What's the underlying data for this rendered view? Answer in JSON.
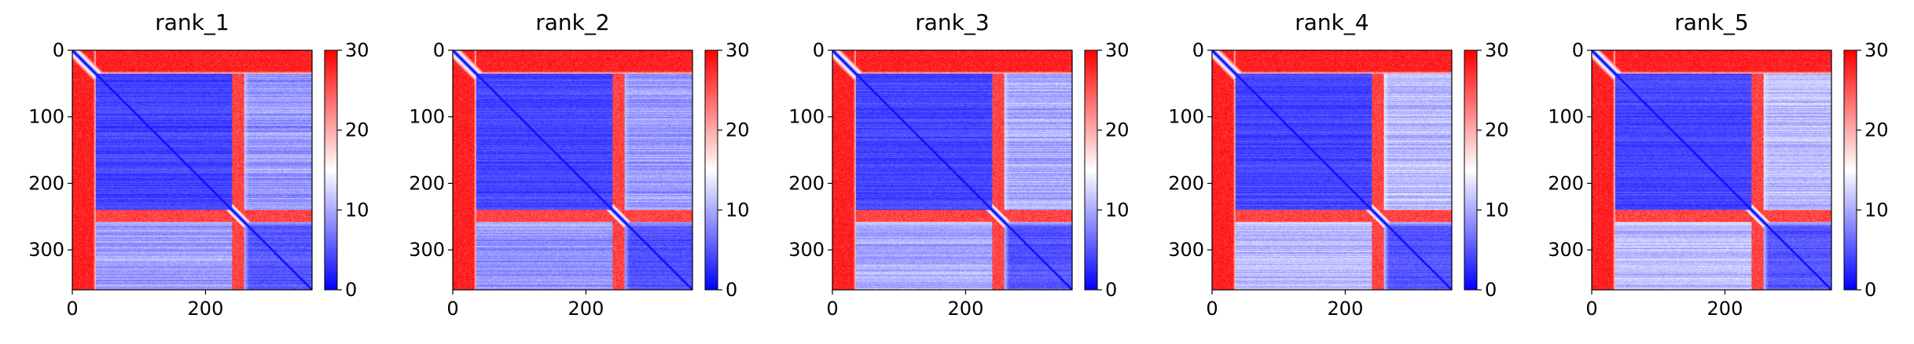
{
  "figure": {
    "colormap": {
      "name": "bwr",
      "low": "#0000ff",
      "mid": "#ffffff",
      "high": "#ff0000"
    },
    "colorbar_range": [
      0,
      30
    ],
    "colorbar_ticks": [
      "0",
      "10",
      "20",
      "30"
    ],
    "matrix_size": 360
  },
  "chart_data": [
    {
      "type": "heatmap",
      "title": "rank_1",
      "xlabel": "",
      "ylabel": "",
      "x_ticks": [
        "0",
        "200"
      ],
      "y_ticks": [
        "0",
        "100",
        "200",
        "300"
      ],
      "xlim": [
        0,
        360
      ],
      "ylim": [
        360,
        0
      ],
      "domain_split": 255,
      "domain_a": [
        35,
        240
      ],
      "linker_band": [
        240,
        258
      ],
      "values": {
        "n_terminal_tail": 28,
        "domain_a_interior": 4,
        "domain_b_interior": 5,
        "interdomain_a_b": 9,
        "light_band": 13
      },
      "light_band_center": 255
    },
    {
      "type": "heatmap",
      "title": "rank_2",
      "xlabel": "",
      "ylabel": "",
      "x_ticks": [
        "0",
        "200"
      ],
      "y_ticks": [
        "0",
        "100",
        "200",
        "300"
      ],
      "xlim": [
        0,
        360
      ],
      "ylim": [
        360,
        0
      ],
      "domain_split": 255,
      "domain_a": [
        35,
        240
      ],
      "linker_band": [
        240,
        258
      ],
      "values": {
        "n_terminal_tail": 28,
        "domain_a_interior": 4,
        "domain_b_interior": 5,
        "interdomain_a_b": 9,
        "light_band": 12
      },
      "light_band_center": 255
    },
    {
      "type": "heatmap",
      "title": "rank_3",
      "xlabel": "",
      "ylabel": "",
      "x_ticks": [
        "0",
        "200"
      ],
      "y_ticks": [
        "0",
        "100",
        "200",
        "300"
      ],
      "xlim": [
        0,
        360
      ],
      "ylim": [
        360,
        0
      ],
      "domain_split": 255,
      "domain_a": [
        35,
        240
      ],
      "linker_band": [
        240,
        258
      ],
      "values": {
        "n_terminal_tail": 28,
        "domain_a_interior": 4,
        "domain_b_interior": 5,
        "interdomain_a_b": 10,
        "light_band": 14
      },
      "light_band_center": 255
    },
    {
      "type": "heatmap",
      "title": "rank_4",
      "xlabel": "",
      "ylabel": "",
      "x_ticks": [
        "0",
        "200"
      ],
      "y_ticks": [
        "0",
        "100",
        "200",
        "300"
      ],
      "xlim": [
        0,
        360
      ],
      "ylim": [
        360,
        0
      ],
      "domain_split": 255,
      "domain_a": [
        35,
        240
      ],
      "linker_band": [
        240,
        258
      ],
      "values": {
        "n_terminal_tail": 28,
        "domain_a_interior": 4,
        "domain_b_interior": 5,
        "interdomain_a_b": 11,
        "light_band": 15
      },
      "light_band_center": 255
    },
    {
      "type": "heatmap",
      "title": "rank_5",
      "xlabel": "",
      "ylabel": "",
      "x_ticks": [
        "0",
        "200"
      ],
      "y_ticks": [
        "0",
        "100",
        "200",
        "300"
      ],
      "xlim": [
        0,
        360
      ],
      "ylim": [
        360,
        0
      ],
      "domain_split": 255,
      "domain_a": [
        35,
        240
      ],
      "linker_band": [
        240,
        258
      ],
      "values": {
        "n_terminal_tail": 28,
        "domain_a_interior": 4,
        "domain_b_interior": 5,
        "interdomain_a_b": 11,
        "light_band": 14
      },
      "light_band_center": 255
    }
  ]
}
